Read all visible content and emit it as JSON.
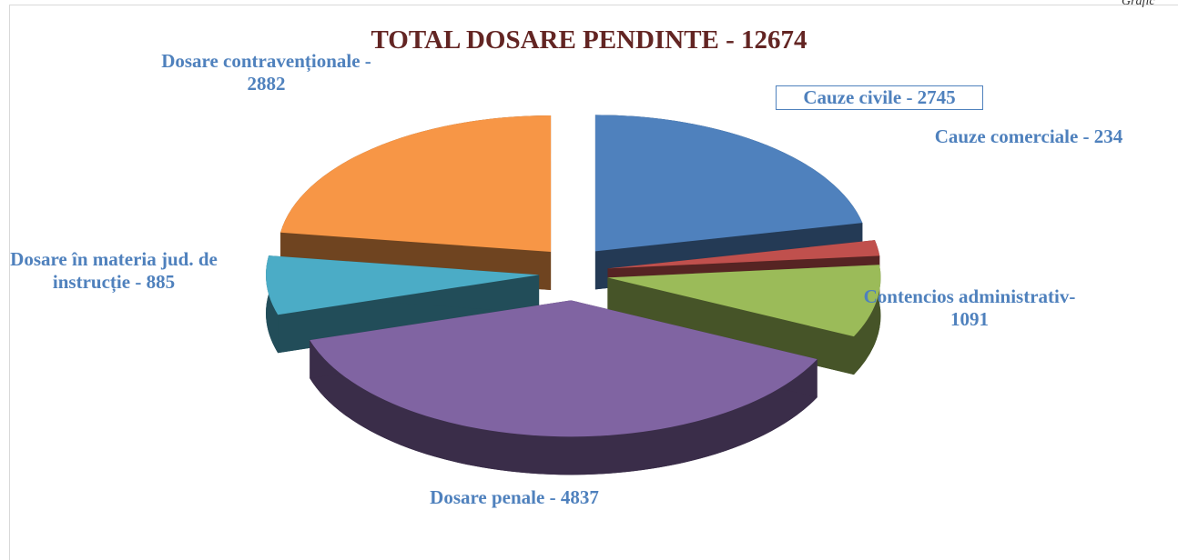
{
  "chart_data": {
    "type": "pie3d",
    "title": "TOTAL DOSARE PENDINTE - 12674",
    "note": "Grafic",
    "values": [
      2745,
      234,
      1091,
      4837,
      885,
      2882
    ],
    "value_labels": [
      "Cauze civile - 2745",
      "Cauze comerciale - 234",
      "Contencios administrativ- 1091",
      "Dosare penale - 4837",
      "Dosare în materia jud. de instrucție - 885",
      "Dosare contravenționale - 2882"
    ],
    "colors": [
      "#4f81bd",
      "#c0504d",
      "#9bbb59",
      "#8064a2",
      "#4bacc6",
      "#f79646"
    ]
  }
}
